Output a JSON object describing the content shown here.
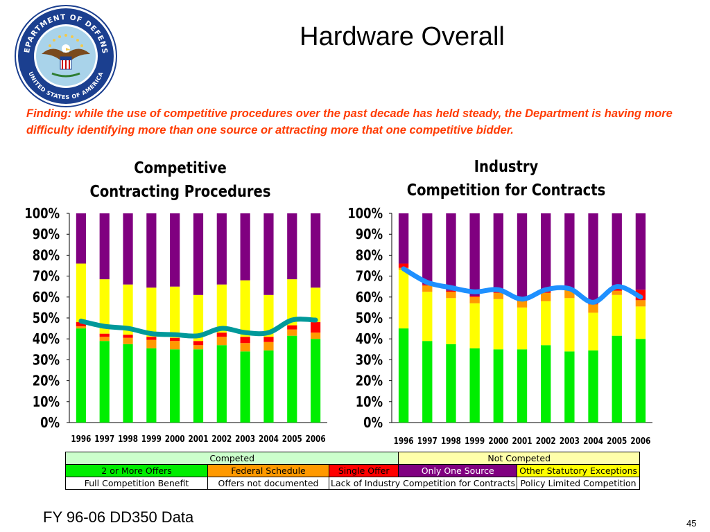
{
  "slide": {
    "title": "Hardware Overall",
    "finding": "Finding:  while the use of competitive procedures over the past decade has held steady, the Department is having more difficulty identifying more than one source or attracting more that one competitive bidder.",
    "footer": "FY 96-06 DD350 Data",
    "page_number": "45",
    "seal": {
      "top_text": "DEPARTMENT OF DEFENSE",
      "bottom_text": "UNITED STATES OF AMERICA",
      "colors": {
        "ring": "#1b3f8f",
        "inner": "#a9d3ea",
        "gold": "#f2c94c"
      }
    }
  },
  "colors": {
    "two_or_more": "#00ee00",
    "federal_schedule": "#ff9900",
    "single_offer": "#ff0000",
    "only_one_source": "#800080",
    "other_statutory": "#ffff00",
    "trend_line_1": "#00999a",
    "trend_line_2": "#1e90ff",
    "competed_header": "#ccffcc",
    "not_competed_header": "#ffffaa"
  },
  "chart_data": [
    {
      "type": "bar",
      "stacked": true,
      "title": "Competitive",
      "subtitle": "Contracting Procedures",
      "categories": [
        "1996",
        "1997",
        "1998",
        "1999",
        "2000",
        "2001",
        "2002",
        "2003",
        "2004",
        "2005",
        "2006"
      ],
      "ylim": [
        0,
        100
      ],
      "yticks": [
        "0%",
        "10%",
        "20%",
        "30%",
        "40%",
        "50%",
        "60%",
        "70%",
        "80%",
        "90%",
        "100%"
      ],
      "series": [
        {
          "name": "2 or More Offers",
          "color": "#00ee00",
          "values": [
            45,
            39,
            37.5,
            35.5,
            35,
            35,
            37,
            34,
            34.5,
            41.5,
            40
          ]
        },
        {
          "name": "Federal Schedule",
          "color": "#ff9900",
          "values": [
            1,
            2,
            3,
            4,
            4,
            2,
            4,
            4,
            4,
            3,
            3
          ]
        },
        {
          "name": "Single Offer",
          "color": "#ff0000",
          "values": [
            2,
            1.5,
            1.5,
            1.5,
            1.5,
            2,
            2,
            3,
            2.5,
            2,
            5
          ]
        },
        {
          "name": "Other Statutory Exceptions",
          "color": "#ffff00",
          "values": [
            28,
            26,
            24,
            23.5,
            24.5,
            22,
            23,
            27,
            20,
            22,
            16.5
          ]
        },
        {
          "name": "Only One Source",
          "color": "#800080",
          "values": [
            24,
            31.5,
            34,
            35.5,
            35,
            39,
            34,
            32,
            39,
            31.5,
            35.5
          ]
        }
      ],
      "line": {
        "color": "#00999a",
        "values": [
          48.5,
          46,
          45,
          42.5,
          42,
          41.5,
          45,
          43,
          43,
          49,
          49
        ]
      }
    },
    {
      "type": "bar",
      "stacked": true,
      "title": "Industry",
      "subtitle": "Competition for Contracts",
      "categories": [
        "1996",
        "1997",
        "1998",
        "1999",
        "2000",
        "2001",
        "2002",
        "2003",
        "2004",
        "2005",
        "2006"
      ],
      "ylim": [
        0,
        100
      ],
      "yticks": [
        "0%",
        "10%",
        "20%",
        "30%",
        "40%",
        "50%",
        "60%",
        "70%",
        "80%",
        "90%",
        "100%"
      ],
      "series": [
        {
          "name": "2 or More Offers",
          "color": "#00ee00",
          "values": [
            45,
            39,
            37.5,
            35.5,
            35,
            35,
            37,
            34,
            34.5,
            41.5,
            40
          ]
        },
        {
          "name": "Other Statutory Exceptions",
          "color": "#ffff00",
          "values": [
            28,
            23.5,
            22,
            21.5,
            24,
            20,
            21,
            25.5,
            18,
            19.5,
            15.5
          ]
        },
        {
          "name": "Federal Schedule",
          "color": "#ff9900",
          "values": [
            1,
            3,
            3,
            3,
            3,
            3,
            4,
            4,
            4,
            2,
            3
          ]
        },
        {
          "name": "Single Offer",
          "color": "#ff0000",
          "values": [
            2,
            0.5,
            0.5,
            0.5,
            0.5,
            1.5,
            1,
            0.5,
            1.5,
            1,
            5
          ]
        },
        {
          "name": "Only One Source",
          "color": "#800080",
          "values": [
            24,
            34,
            37,
            39.5,
            37.5,
            40.5,
            37,
            36,
            42,
            36,
            36.5
          ]
        }
      ],
      "line": {
        "color": "#1e90ff",
        "values": [
          73.5,
          67,
          64.5,
          62.5,
          63.5,
          59,
          63.5,
          64,
          57.5,
          65,
          60
        ]
      }
    }
  ],
  "legend": {
    "group_headers": [
      {
        "label": "Competed",
        "color": "#ccffcc"
      },
      {
        "label": "Not Competed",
        "color": "#ffffaa"
      }
    ],
    "categories": [
      {
        "label": "2 or More Offers",
        "color": "#00ee00"
      },
      {
        "label": "Federal Schedule",
        "color": "#ff9900"
      },
      {
        "label": "Single Offer",
        "color": "#ff0000"
      },
      {
        "label": "Only One Source",
        "color": "#800080"
      },
      {
        "label": "Other Statutory Exceptions",
        "color": "#ffff00"
      }
    ],
    "row3": [
      {
        "label": "Full Competition Benefit"
      },
      {
        "label": "Offers not documented"
      },
      {
        "label": "Lack of Industry Competition for Contracts"
      },
      {
        "label": "Policy Limited Competition"
      }
    ]
  }
}
